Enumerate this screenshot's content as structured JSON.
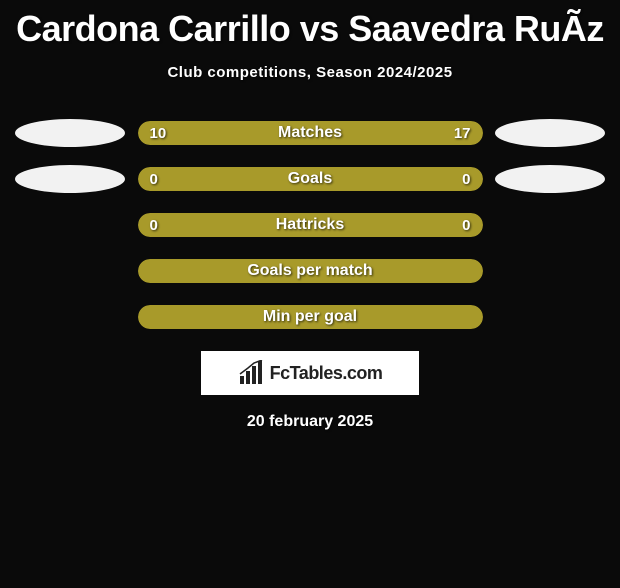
{
  "title": "Cardona Carrillo vs Saavedra RuÃ­z",
  "subtitle": "Club competitions, Season 2024/2025",
  "date": "20 february 2025",
  "colors": {
    "bar_primary_left": "#a89a2a",
    "bar_primary_right": "#a89a2a",
    "bar_bg": "#a89a2a",
    "avatar_bg": "#f8f8f8"
  },
  "stats": [
    {
      "label": "Matches",
      "left_value": "10",
      "right_value": "17",
      "left_pct": 37,
      "right_pct": 63,
      "left_color": "#a89a2a",
      "right_color": "#a89a2a",
      "show_avatars": true
    },
    {
      "label": "Goals",
      "left_value": "0",
      "right_value": "0",
      "left_pct": 50,
      "right_pct": 50,
      "left_color": "#a89a2a",
      "right_color": "#a89a2a",
      "show_avatars": true
    },
    {
      "label": "Hattricks",
      "left_value": "0",
      "right_value": "0",
      "left_pct": 50,
      "right_pct": 50,
      "left_color": "#a89a2a",
      "right_color": "#a89a2a",
      "show_avatars": false
    },
    {
      "label": "Goals per match",
      "left_value": "",
      "right_value": "",
      "left_pct": 100,
      "right_pct": 0,
      "left_color": "#a89a2a",
      "right_color": "#a89a2a",
      "show_avatars": false
    },
    {
      "label": "Min per goal",
      "left_value": "",
      "right_value": "",
      "left_pct": 100,
      "right_pct": 0,
      "left_color": "#a89a2a",
      "right_color": "#a89a2a",
      "show_avatars": false
    }
  ],
  "logo": {
    "text": "FcTables.com",
    "icon_color": "#222"
  }
}
